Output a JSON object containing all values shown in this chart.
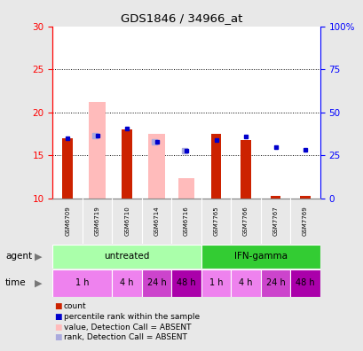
{
  "title": "GDS1846 / 34966_at",
  "samples": [
    "GSM6709",
    "GSM6719",
    "GSM6710",
    "GSM6714",
    "GSM6716",
    "GSM7765",
    "GSM7766",
    "GSM7767",
    "GSM7769"
  ],
  "ylim_left": [
    10,
    30
  ],
  "ylim_right": [
    0,
    100
  ],
  "yticks_left": [
    10,
    15,
    20,
    25,
    30
  ],
  "yticks_right": [
    0,
    25,
    50,
    75,
    100
  ],
  "ytick_labels_right": [
    "0",
    "25",
    "50",
    "75",
    "100%"
  ],
  "red_bars": [
    17.0,
    0,
    18.0,
    0,
    0,
    17.5,
    16.8,
    0.3,
    0.3
  ],
  "pink_bars": [
    0,
    21.2,
    0,
    17.5,
    12.3,
    0,
    0,
    0,
    0
  ],
  "blue_squares_y": [
    17.0,
    17.3,
    18.1,
    16.6,
    15.5,
    16.8,
    17.2,
    16.0,
    15.6
  ],
  "lavender_squares_y": [
    0,
    17.3,
    0,
    16.6,
    15.5,
    0,
    0,
    0,
    0
  ],
  "agent_groups": [
    {
      "label": "untreated",
      "start": 0,
      "end": 5,
      "color": "#aaffaa"
    },
    {
      "label": "IFN-gamma",
      "start": 5,
      "end": 9,
      "color": "#33cc33"
    }
  ],
  "time_spans": [
    {
      "label": "1 h",
      "start": 0,
      "end": 2,
      "color": "#ee82ee"
    },
    {
      "label": "4 h",
      "start": 2,
      "end": 3,
      "color": "#ee82ee"
    },
    {
      "label": "24 h",
      "start": 3,
      "end": 4,
      "color": "#cc44cc"
    },
    {
      "label": "48 h",
      "start": 4,
      "end": 5,
      "color": "#aa00aa"
    },
    {
      "label": "1 h",
      "start": 5,
      "end": 6,
      "color": "#ee82ee"
    },
    {
      "label": "4 h",
      "start": 6,
      "end": 7,
      "color": "#ee82ee"
    },
    {
      "label": "24 h",
      "start": 7,
      "end": 8,
      "color": "#cc44cc"
    },
    {
      "label": "48 h",
      "start": 8,
      "end": 9,
      "color": "#aa00aa"
    }
  ],
  "red_color": "#cc2200",
  "pink_color": "#ffbbbb",
  "blue_color": "#0000cc",
  "lavender_color": "#aaaadd",
  "bg_color": "#e8e8e8",
  "plot_bg": "#ffffff",
  "sample_row_bg": "#c8c8c8",
  "legend_items": [
    {
      "label": "count",
      "color": "#cc2200"
    },
    {
      "label": "percentile rank within the sample",
      "color": "#0000cc"
    },
    {
      "label": "value, Detection Call = ABSENT",
      "color": "#ffbbbb"
    },
    {
      "label": "rank, Detection Call = ABSENT",
      "color": "#aaaadd"
    }
  ]
}
